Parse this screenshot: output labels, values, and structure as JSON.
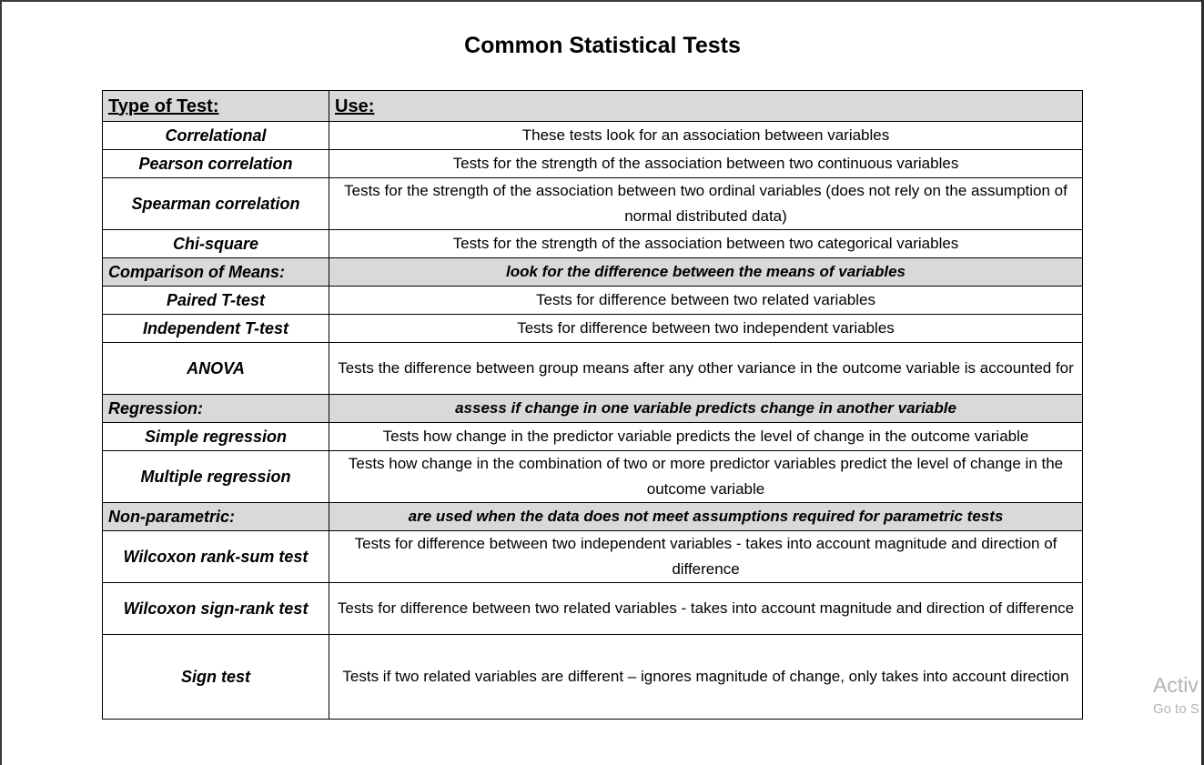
{
  "title": "Common Statistical Tests",
  "table": {
    "header": {
      "col1": "Type of Test:",
      "col2": "Use:"
    },
    "sections": [
      {
        "name": "",
        "description": "",
        "rows": [
          {
            "test": "Correlational",
            "use": "These tests look for an association between variables"
          },
          {
            "test": "Pearson correlation",
            "use": "Tests for the strength of the association between two continuous variables"
          },
          {
            "test": "Spearman correlation",
            "use": "Tests for the strength of the association between two ordinal variables (does not rely on the assumption of normal distributed data)"
          },
          {
            "test": "Chi-square",
            "use": "Tests for the strength of the association between two categorical variables"
          }
        ]
      },
      {
        "name": "Comparison of Means:",
        "description": "look for the difference between the means of variables",
        "rows": [
          {
            "test": "Paired T-test",
            "use": "Tests for difference between two related variables"
          },
          {
            "test": "Independent T-test",
            "use": "Tests for difference between two independent variables"
          },
          {
            "test": "ANOVA",
            "use": "Tests the difference between group means after any other variance in the outcome variable is accounted for"
          }
        ]
      },
      {
        "name": "Regression:",
        "description": "assess if change in one variable predicts change in another variable",
        "rows": [
          {
            "test": "Simple regression",
            "use": "Tests how change in the predictor variable predicts the level of change in the outcome variable"
          },
          {
            "test": "Multiple regression",
            "use": "Tests how change in the combination of two or more predictor variables predict the level of change in the outcome variable"
          }
        ]
      },
      {
        "name": "Non-parametric:",
        "description": "are used when the data does not meet assumptions required for parametric tests",
        "rows": [
          {
            "test": "Wilcoxon rank-sum test",
            "use": "Tests for difference between two independent variables - takes into account magnitude and direction of difference"
          },
          {
            "test": "Wilcoxon sign-rank test",
            "use": "Tests for difference between two related variables - takes into account magnitude and direction of difference"
          },
          {
            "test": "Sign test",
            "use": "Tests if two related variables are different – ignores magnitude of change, only takes into account direction"
          }
        ]
      }
    ]
  },
  "watermark": {
    "line1": "Activ",
    "line2": "Go to S"
  }
}
